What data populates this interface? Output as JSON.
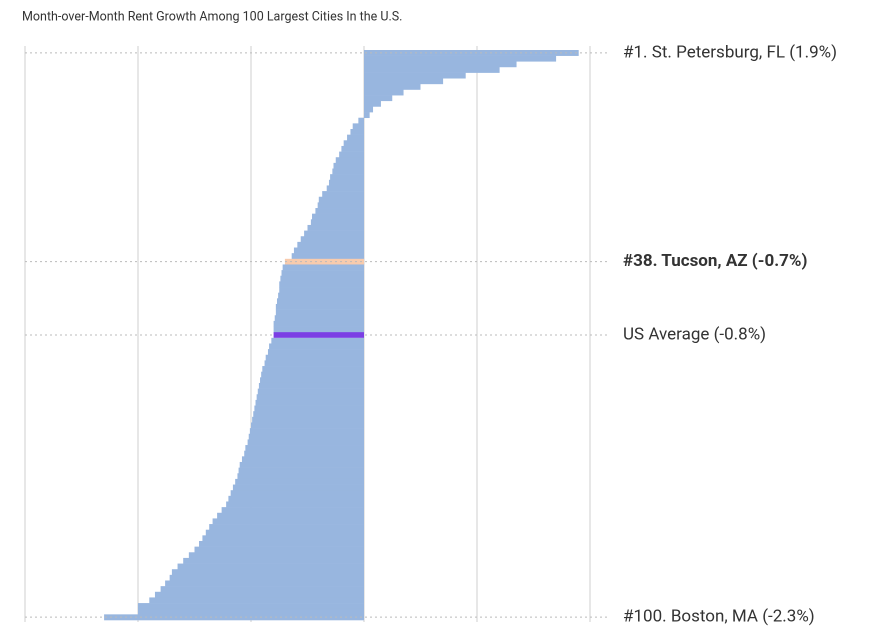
{
  "chart_data": {
    "type": "bar",
    "orientation": "horizontal",
    "title": "Month-over-Month Rent Growth Among 100 Largest Cities In the U.S.",
    "categories": [
      "#1. St. Petersburg, FL (1.9%)",
      null,
      null,
      null,
      null,
      null,
      null,
      null,
      null,
      null,
      null,
      null,
      null,
      null,
      null,
      null,
      null,
      null,
      null,
      null,
      null,
      null,
      null,
      null,
      null,
      null,
      null,
      null,
      null,
      null,
      null,
      null,
      null,
      null,
      null,
      null,
      null,
      "#38. Tucson, AZ (-0.7%)",
      null,
      null,
      null,
      null,
      null,
      null,
      null,
      null,
      null,
      null,
      null,
      null,
      null,
      null,
      null,
      null,
      null,
      null,
      null,
      null,
      null,
      null,
      null,
      null,
      null,
      null,
      null,
      null,
      null,
      null,
      null,
      null,
      null,
      null,
      null,
      null,
      null,
      null,
      null,
      null,
      null,
      null,
      null,
      null,
      null,
      null,
      null,
      null,
      null,
      null,
      null,
      null,
      null,
      null,
      null,
      null,
      null,
      null,
      null,
      null,
      null,
      "#100. Boston, MA (-2.3%)"
    ],
    "values": [
      1.9,
      1.7,
      1.35,
      1.2,
      0.9,
      0.7,
      0.5,
      0.35,
      0.25,
      0.15,
      0.08,
      0.05,
      -0.05,
      -0.1,
      -0.12,
      -0.15,
      -0.18,
      -0.2,
      -0.22,
      -0.25,
      -0.27,
      -0.28,
      -0.3,
      -0.31,
      -0.33,
      -0.37,
      -0.4,
      -0.41,
      -0.43,
      -0.46,
      -0.47,
      -0.5,
      -0.53,
      -0.56,
      -0.59,
      -0.62,
      -0.64,
      -0.7,
      -0.72,
      -0.73,
      -0.74,
      -0.75,
      -0.75,
      -0.76,
      -0.77,
      -0.78,
      -0.78,
      -0.79,
      -0.8,
      -0.8,
      -0.82,
      -0.84,
      -0.85,
      -0.87,
      -0.88,
      -0.9,
      -0.91,
      -0.92,
      -0.93,
      -0.94,
      -0.95,
      -0.96,
      -0.97,
      -0.98,
      -0.99,
      -1.0,
      -1.01,
      -1.02,
      -1.03,
      -1.05,
      -1.06,
      -1.08,
      -1.1,
      -1.11,
      -1.12,
      -1.14,
      -1.16,
      -1.18,
      -1.2,
      -1.22,
      -1.26,
      -1.3,
      -1.34,
      -1.37,
      -1.4,
      -1.43,
      -1.46,
      -1.5,
      -1.55,
      -1.6,
      -1.65,
      -1.7,
      -1.72,
      -1.76,
      -1.8,
      -1.85,
      -1.9,
      -2.0,
      -2.0,
      -2.3
    ],
    "colors": [
      "#98b6df",
      "#98b6df",
      "#98b6df",
      "#98b6df",
      "#98b6df",
      "#98b6df",
      "#98b6df",
      "#98b6df",
      "#98b6df",
      "#98b6df",
      "#98b6df",
      "#98b6df",
      "#98b6df",
      "#98b6df",
      "#98b6df",
      "#98b6df",
      "#98b6df",
      "#98b6df",
      "#98b6df",
      "#98b6df",
      "#98b6df",
      "#98b6df",
      "#98b6df",
      "#98b6df",
      "#98b6df",
      "#98b6df",
      "#98b6df",
      "#98b6df",
      "#98b6df",
      "#98b6df",
      "#98b6df",
      "#98b6df",
      "#98b6df",
      "#98b6df",
      "#98b6df",
      "#98b6df",
      "#98b6df",
      "#f8cbad",
      "#98b6df",
      "#98b6df",
      "#98b6df",
      "#98b6df",
      "#98b6df",
      "#98b6df",
      "#98b6df",
      "#98b6df",
      "#98b6df",
      "#98b6df",
      "#98b6df",
      "#98b6df",
      "#98b6df",
      "#98b6df",
      "#98b6df",
      "#98b6df",
      "#98b6df",
      "#98b6df",
      "#98b6df",
      "#98b6df",
      "#98b6df",
      "#98b6df",
      "#98b6df",
      "#98b6df",
      "#98b6df",
      "#98b6df",
      "#98b6df",
      "#98b6df",
      "#98b6df",
      "#98b6df",
      "#98b6df",
      "#98b6df",
      "#98b6df",
      "#98b6df",
      "#98b6df",
      "#98b6df",
      "#98b6df",
      "#98b6df",
      "#98b6df",
      "#98b6df",
      "#98b6df",
      "#98b6df",
      "#98b6df",
      "#98b6df",
      "#98b6df",
      "#98b6df",
      "#98b6df",
      "#98b6df",
      "#98b6df",
      "#98b6df",
      "#98b6df",
      "#98b6df",
      "#98b6df",
      "#98b6df",
      "#98b6df",
      "#98b6df",
      "#98b6df",
      "#98b6df",
      "#98b6df",
      "#98b6df",
      "#98b6df",
      "#98b6df"
    ],
    "average": {
      "label": "US Average (-0.8%)",
      "value": -0.8,
      "color": "#7b3fe4"
    },
    "xlim": [
      -3,
      2
    ],
    "xticks": [
      -3,
      -2,
      -1,
      0,
      1,
      2
    ],
    "grid": true
  }
}
